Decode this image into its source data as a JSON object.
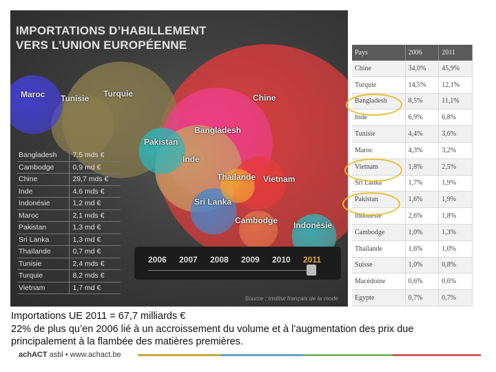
{
  "title": {
    "line1": "IMPORTATIONS D’HABILLEMENT",
    "line2": "VERS L’UNION EUROPÉENNE"
  },
  "chart_data": {
    "type": "bubble",
    "title": "IMPORTATIONS D’HABILLEMENT VERS L’UNION EUROPÉENNE",
    "unit": "€",
    "categories": [
      "Bangladesh",
      "Cambodge",
      "Chine",
      "Inde",
      "Indonésie",
      "Maroc",
      "Pakistan",
      "Sri Lanka",
      "Thaïlande",
      "Tunisie",
      "Turquie",
      "Vietnam"
    ],
    "values": [
      "7,5 mds €",
      "0,9 md €",
      "29,7 mds €",
      "4,6 mds €",
      "1,2 md €",
      "2,1 mds €",
      "1,3 md €",
      "1,3 md €",
      "0,7 md €",
      "2,4 mds €",
      "8,2 mds €",
      "1,7 md €"
    ],
    "bubbles": [
      {
        "name": "Chine",
        "label": "Chine",
        "value": 29.7,
        "color": "#e53b3b"
      },
      {
        "name": "Turquie",
        "label": "Turquie",
        "value": 8.2,
        "color": "#8a7d4e"
      },
      {
        "name": "Bangladesh",
        "label": "Bangladesh",
        "value": 7.5,
        "color": "#ee3f8c"
      },
      {
        "name": "Inde",
        "label": "Inde",
        "value": 4.6,
        "color": "#c7a064"
      },
      {
        "name": "Tunisie",
        "label": "Tunisie",
        "value": 2.4,
        "color": "#8a7d4e"
      },
      {
        "name": "Maroc",
        "label": "Maroc",
        "value": 2.1,
        "color": "#4440d8"
      },
      {
        "name": "Vietnam",
        "label": "Vietnam",
        "value": 1.7,
        "color": "#e53b3b"
      },
      {
        "name": "Pakistan",
        "label": "Pakistan",
        "value": 1.3,
        "color": "#2fb5b8"
      },
      {
        "name": "Sri Lanka",
        "label": "Sri Lanka",
        "value": 1.3,
        "color": "#4c86c8"
      },
      {
        "name": "Indonésie",
        "label": "Indonésie",
        "value": 1.2,
        "color": "#2fb5b8"
      },
      {
        "name": "Cambodge",
        "label": "Cambodge",
        "value": 0.9,
        "color": "#e0734a"
      },
      {
        "name": "Thaïlande",
        "label": "Thaïlande",
        "value": 0.7,
        "color": "#f0a336"
      }
    ],
    "years": [
      "2006",
      "2007",
      "2008",
      "2009",
      "2010",
      "2011"
    ],
    "selected_year": "2011",
    "source": "Source : Institut français de la mode"
  },
  "share_table": {
    "headers": [
      "Pays",
      "2006",
      "2011"
    ],
    "rows": [
      [
        "Chine",
        "34,0%",
        "45,9%"
      ],
      [
        "Turquie",
        "14,5%",
        "12,1%"
      ],
      [
        "Bangladesh",
        "8,5%",
        "11,1%"
      ],
      [
        "Inde",
        "6,9%",
        "6,8%"
      ],
      [
        "Tunisie",
        "4,4%",
        "3,6%"
      ],
      [
        "Maroc",
        "4,3%",
        "3,2%"
      ],
      [
        "Vietnam",
        "1,8%",
        "2,5%"
      ],
      [
        "Sri Lanka",
        "1,7%",
        "1,9%"
      ],
      [
        "Pakistan",
        "1,6%",
        "1,9%"
      ],
      [
        "Indonésie",
        "2,6%",
        "1,8%"
      ],
      [
        "Cambodge",
        "1,0%",
        "1,3%"
      ],
      [
        "Thaïlande",
        "1,6%",
        "1,0%"
      ],
      [
        "Suisse",
        "1,0%",
        "0,8%"
      ],
      [
        "Macédoine",
        "0,6%",
        "0,6%"
      ],
      [
        "Egypte",
        "0,7%",
        "0,7%"
      ]
    ],
    "highlight_color": "#e8bf33"
  },
  "footer": {
    "line1": "Importations UE 2011 =  67,7 milliards  €",
    "line2": "22% de plus qu’en 2006 lié à un accroissement du volume et à l’augmentation des prix due",
    "line3": "principalement à la flambée des matières premières."
  },
  "logo": {
    "brand": "achACT",
    "rest": " asbl • www.achact.be"
  }
}
